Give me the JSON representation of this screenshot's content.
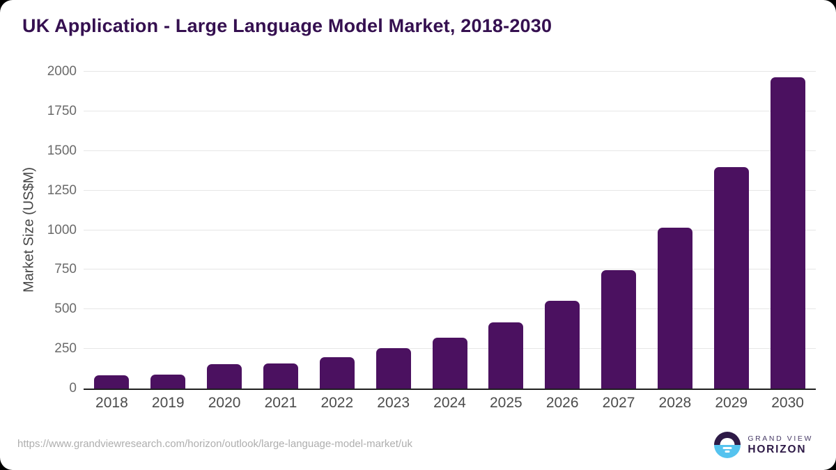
{
  "title": "UK Application - Large Language Model Market, 2018-2030",
  "source_url": "https://www.grandviewresearch.com/horizon/outlook/large-language-model-market/uk",
  "logo": {
    "brand_top": "GRAND VIEW",
    "brand_bottom": "HORIZON",
    "icon": "sunrise-horizon-icon"
  },
  "colors": {
    "bar": "#4b1160",
    "title": "#351050",
    "gridline": "#e6e6e6",
    "axis_line": "#1f1f1f",
    "x_tick_text": "#4b4b4b",
    "y_tick_text": "#6a6a6a",
    "url_text": "#aeaeae",
    "logo_purple": "#2e1a47",
    "logo_blue": "#55c3ef",
    "card_background": "#ffffff",
    "page_background": "#000000"
  },
  "chart_data": {
    "type": "bar",
    "title": "UK Application - Large Language Model Market, 2018-2030",
    "categories": [
      "2018",
      "2019",
      "2020",
      "2021",
      "2022",
      "2023",
      "2024",
      "2025",
      "2026",
      "2027",
      "2028",
      "2029",
      "2030"
    ],
    "values": [
      83,
      88,
      153,
      158,
      197,
      254,
      322,
      419,
      556,
      746,
      1015,
      1398,
      1966
    ],
    "xlabel": "",
    "ylabel": "Market Size (US$M)",
    "ylim": [
      0,
      2000
    ],
    "yticks": [
      0,
      250,
      500,
      750,
      1000,
      1250,
      1500,
      1750,
      2000
    ],
    "grid": true,
    "legend": false
  }
}
